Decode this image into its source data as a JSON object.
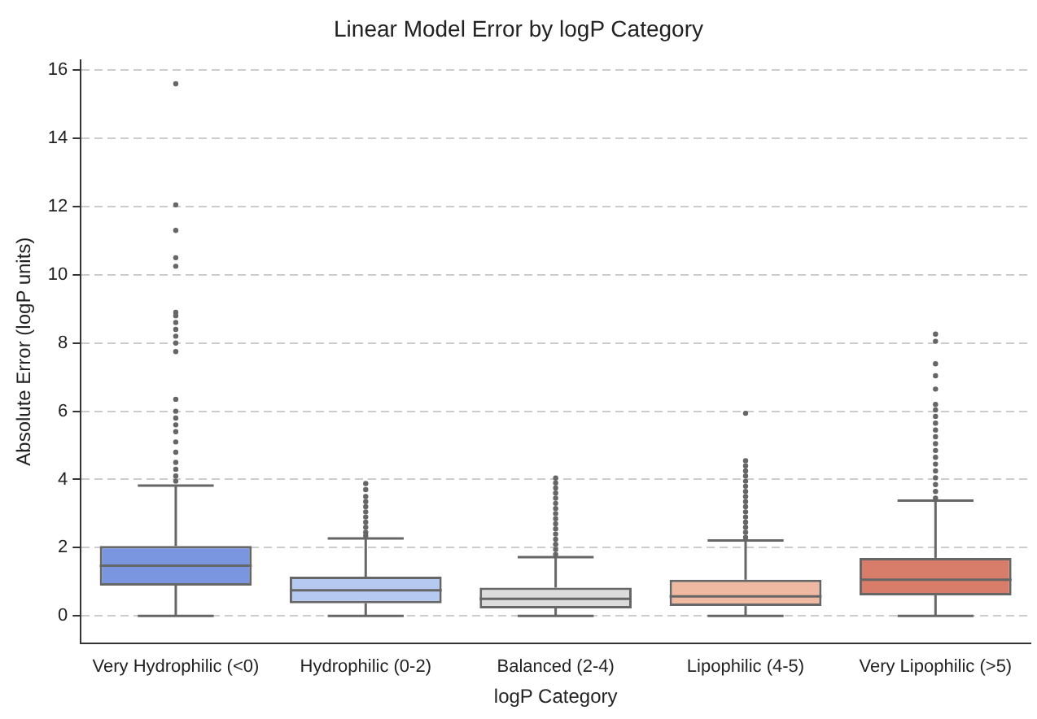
{
  "chart_data": {
    "type": "box",
    "title": "Linear Model Error by logP Category",
    "xlabel": "logP Category",
    "ylabel": "Absolute Error (logP units)",
    "categories": [
      "Very Hydrophilic (<0)",
      "Hydrophilic (0-2)",
      "Balanced (2-4)",
      "Lipophilic (4-5)",
      "Very Lipophilic (>5)"
    ],
    "colors": [
      "#7a96e0",
      "#b6caf1",
      "#dcdcdc",
      "#efb9a1",
      "#d87d69"
    ],
    "boxes": [
      {
        "low": 0,
        "q1": 0.89,
        "median": 1.47,
        "q3": 2.05,
        "high": 3.82,
        "outliers": [
          15.6,
          12.05,
          11.3,
          10.5,
          10.25,
          8.9,
          8.8,
          8.6,
          8.4,
          8.2,
          8.0,
          7.75,
          6.35,
          6.0,
          5.8,
          5.6,
          5.4,
          5.1,
          4.8,
          4.5,
          4.3,
          4.1,
          3.95
        ]
      },
      {
        "low": 0,
        "q1": 0.37,
        "median": 0.75,
        "q3": 1.15,
        "high": 2.27,
        "outliers": [
          3.88,
          3.7,
          3.5,
          3.35,
          3.2,
          3.05,
          2.9,
          2.75,
          2.6,
          2.45,
          2.35
        ]
      },
      {
        "low": 0,
        "q1": 0.22,
        "median": 0.5,
        "q3": 0.83,
        "high": 1.72,
        "outliers": [
          4.04,
          3.9,
          3.75,
          3.6,
          3.45,
          3.3,
          3.15,
          3.0,
          2.85,
          2.7,
          2.55,
          2.4,
          2.25,
          2.1,
          1.95,
          1.8
        ]
      },
      {
        "low": 0,
        "q1": 0.29,
        "median": 0.57,
        "q3": 1.06,
        "high": 2.21,
        "outliers": [
          5.94,
          4.55,
          4.4,
          4.25,
          4.1,
          3.95,
          3.8,
          3.65,
          3.5,
          3.35,
          3.2,
          3.05,
          2.9,
          2.75,
          2.6,
          2.45,
          2.3
        ]
      },
      {
        "low": 0,
        "q1": 0.6,
        "median": 1.06,
        "q3": 1.7,
        "high": 3.38,
        "outliers": [
          8.26,
          8.05,
          7.39,
          7.04,
          6.65,
          6.2,
          6.04,
          5.85,
          5.65,
          5.45,
          5.25,
          5.05,
          4.85,
          4.65,
          4.45,
          4.25,
          4.05,
          3.85,
          3.65,
          3.45
        ]
      }
    ],
    "ylim": [
      -0.8,
      16.3
    ],
    "yticks": [
      0,
      2,
      4,
      6,
      8,
      10,
      12,
      14,
      16
    ],
    "grid": "y",
    "legend": false
  }
}
